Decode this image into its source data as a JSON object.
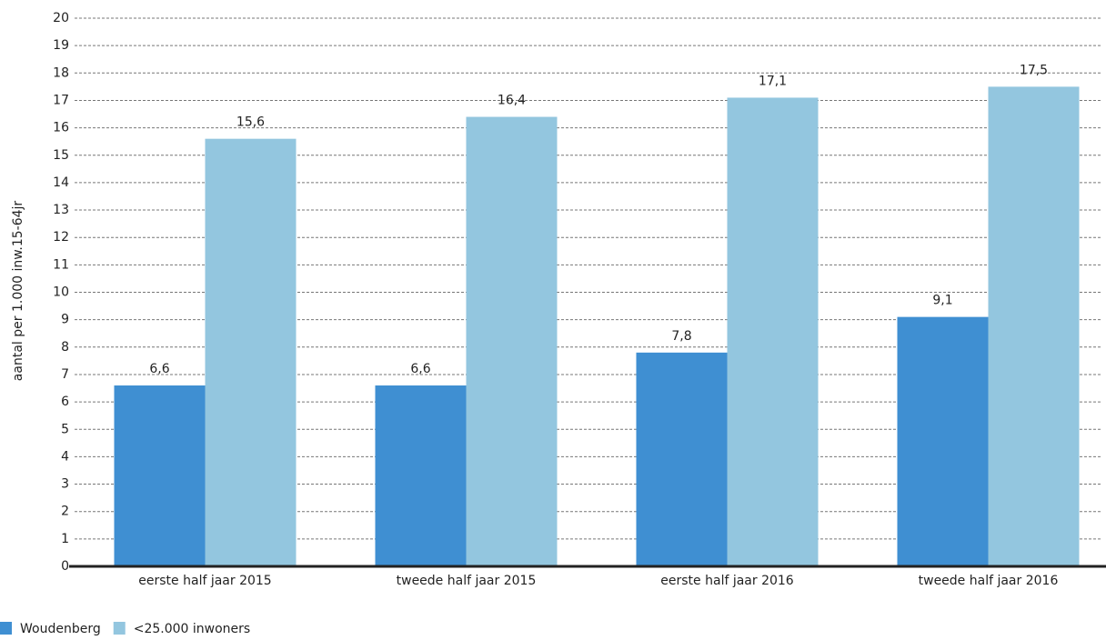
{
  "chart_data": {
    "type": "bar",
    "y_label": "aantal per 1.000 inw.15-64jr",
    "categories": [
      "eerste half jaar 2015",
      "tweede half jaar 2015",
      "eerste half jaar 2016",
      "tweede half jaar 2016"
    ],
    "series": [
      {
        "name": "Woudenberg",
        "color": "#3f8fd2",
        "values": [
          6.6,
          6.6,
          7.8,
          9.1
        ],
        "value_labels": [
          "6,6",
          "6,6",
          "7,8",
          "9,1"
        ]
      },
      {
        "name": "<25.000 inwoners",
        "color": "#93c6df",
        "values": [
          15.6,
          16.4,
          17.1,
          17.5
        ],
        "value_labels": [
          "15,6",
          "16,4",
          "17,1",
          "17,5"
        ]
      }
    ],
    "ylim": [
      0,
      20
    ],
    "yticks": [
      0,
      1,
      2,
      3,
      4,
      5,
      6,
      7,
      8,
      9,
      10,
      11,
      12,
      13,
      14,
      15,
      16,
      17,
      18,
      19,
      20
    ],
    "grid": true,
    "legend": "bottom-left"
  }
}
